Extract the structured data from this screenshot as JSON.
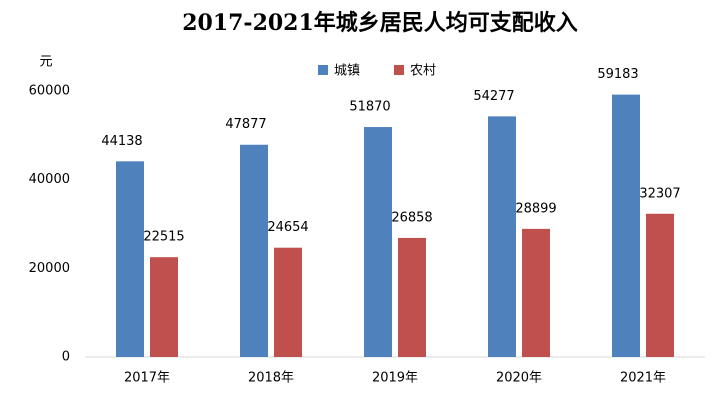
{
  "chart_data": {
    "type": "bar",
    "title": "2017-2021年城乡居民人均可支配收入",
    "y_label": "元",
    "categories": [
      "2017年",
      "2018年",
      "2019年",
      "2020年",
      "2021年"
    ],
    "series": [
      {
        "name": "城镇",
        "color": "#4f81bd",
        "values": [
          44138,
          47877,
          51870,
          54277,
          59183
        ]
      },
      {
        "name": "农村",
        "color": "#c0504d",
        "values": [
          22515,
          24654,
          26858,
          28899,
          32307
        ]
      }
    ],
    "ylim": [
      0,
      60000
    ],
    "yticks": [
      0,
      20000,
      40000,
      60000
    ],
    "grid": false
  }
}
